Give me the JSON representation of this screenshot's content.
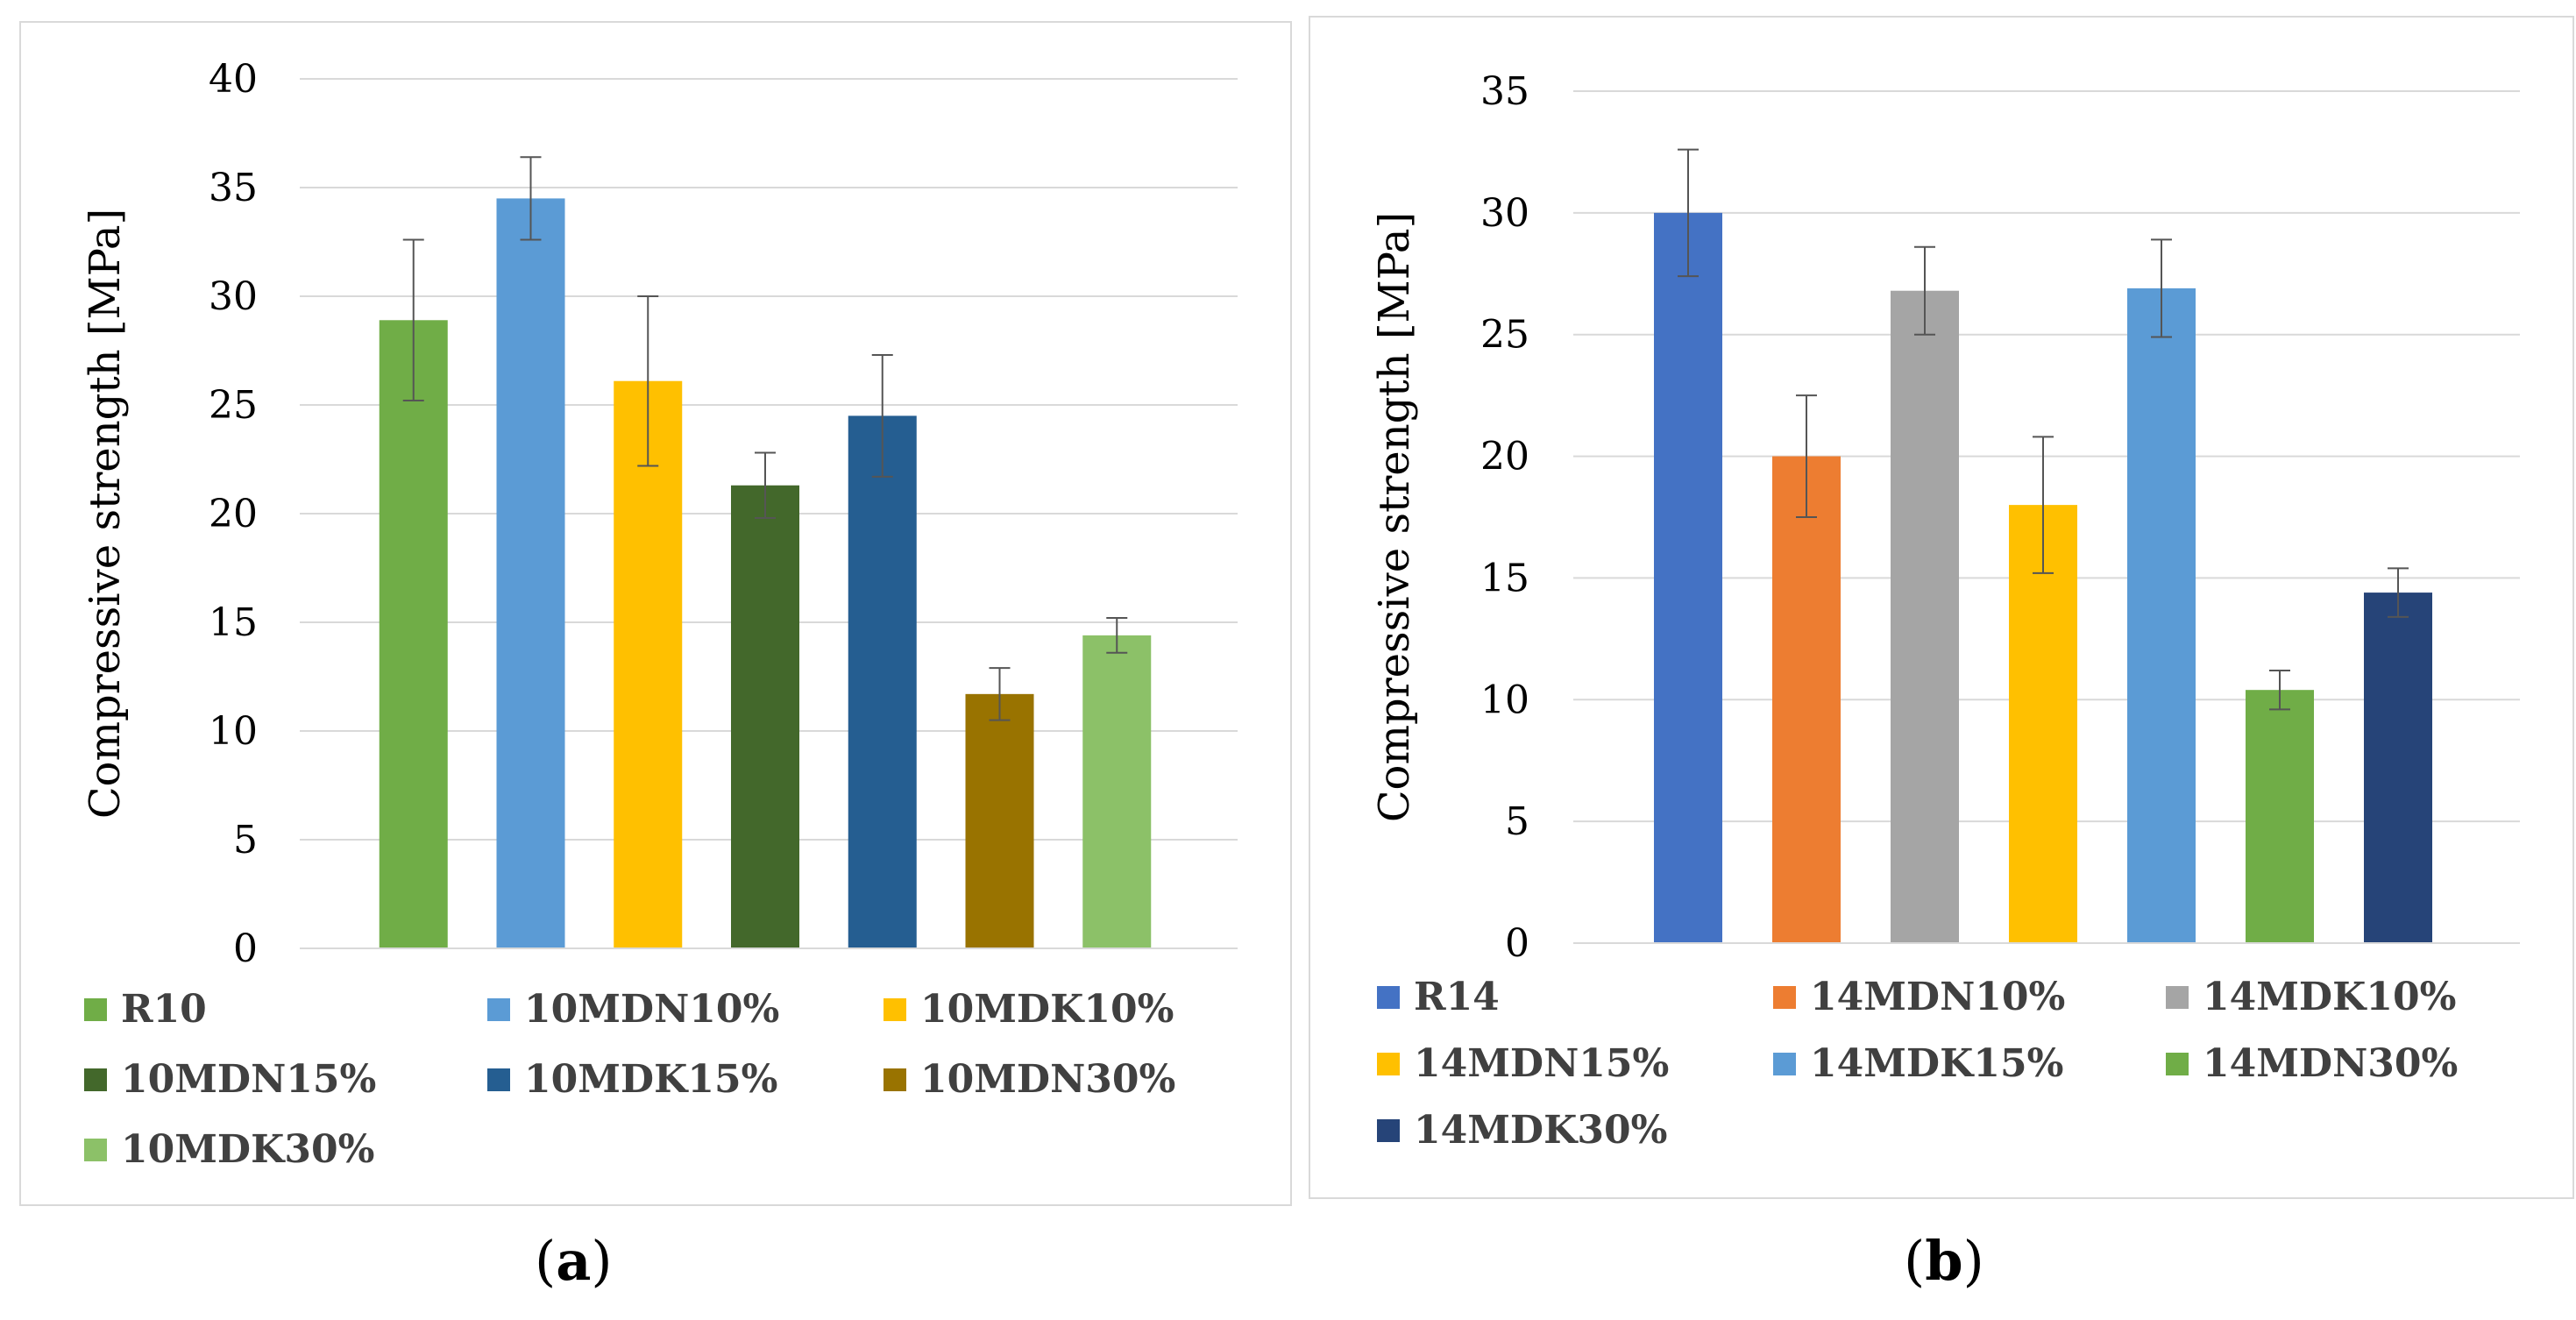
{
  "figure": {
    "caption_a": "a",
    "caption_b": "b"
  },
  "chart_data": [
    {
      "id": "a",
      "type": "bar",
      "title": "",
      "xlabel": "",
      "ylabel": "Compressive strength [MPa]",
      "ylim": [
        0,
        40
      ],
      "yticks": [
        0,
        5,
        10,
        15,
        20,
        25,
        30,
        35,
        40
      ],
      "grid": true,
      "legend_position": "bottom",
      "categories": [
        "R10",
        "10MDN10%",
        "10MDK10%",
        "10MDN15%",
        "10MDK15%",
        "10MDN30%",
        "10MDK30%"
      ],
      "values": [
        28.9,
        34.5,
        26.1,
        21.3,
        24.5,
        11.7,
        14.4
      ],
      "errors": [
        3.7,
        1.9,
        3.9,
        1.5,
        2.8,
        1.2,
        0.8
      ],
      "colors": [
        "#70ad47",
        "#5b9bd5",
        "#ffc000",
        "#43682b",
        "#255e91",
        "#997300",
        "#8cc168"
      ]
    },
    {
      "id": "b",
      "type": "bar",
      "title": "",
      "xlabel": "",
      "ylabel": "Compressive strength [MPa]",
      "ylim": [
        0,
        35
      ],
      "yticks": [
        0,
        5,
        10,
        15,
        20,
        25,
        30,
        35
      ],
      "grid": true,
      "legend_position": "bottom",
      "categories": [
        "R14",
        "14MDN10%",
        "14MDK10%",
        "14MDN15%",
        "14MDK15%",
        "14MDN30%",
        "14MDK30%"
      ],
      "values": [
        30.0,
        20.0,
        26.8,
        18.0,
        26.9,
        10.4,
        14.4
      ],
      "errors": [
        2.6,
        2.5,
        1.8,
        2.8,
        2.0,
        0.8,
        1.0
      ],
      "colors": [
        "#4472c4",
        "#ed7d31",
        "#a5a5a5",
        "#ffc000",
        "#5b9bd5",
        "#70ad47",
        "#264478"
      ]
    }
  ]
}
